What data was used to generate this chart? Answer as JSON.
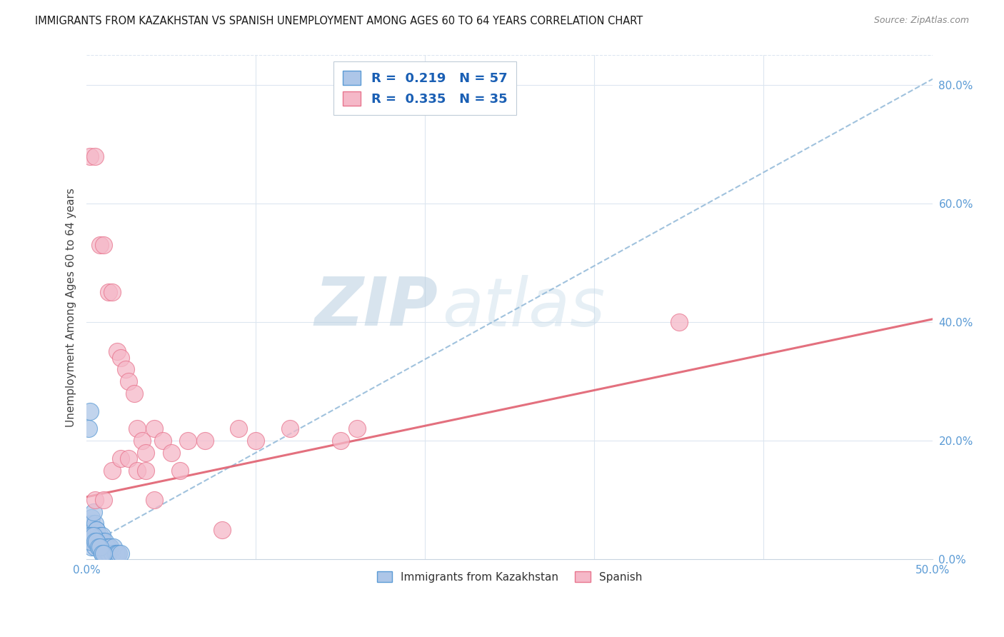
{
  "title": "IMMIGRANTS FROM KAZAKHSTAN VS SPANISH UNEMPLOYMENT AMONG AGES 60 TO 64 YEARS CORRELATION CHART",
  "source": "Source: ZipAtlas.com",
  "ylabel": "Unemployment Among Ages 60 to 64 years",
  "xlim": [
    0.0,
    0.5
  ],
  "ylim": [
    0.0,
    0.85
  ],
  "xticks": [
    0.0,
    0.5
  ],
  "xtick_labels": [
    "0.0%",
    "50.0%"
  ],
  "yticks": [
    0.0,
    0.2,
    0.4,
    0.6,
    0.8
  ],
  "ytick_labels": [
    "0.0%",
    "20.0%",
    "40.0%",
    "60.0%",
    "80.0%"
  ],
  "blue_color": "#adc6e8",
  "blue_edge_color": "#5b9bd5",
  "pink_color": "#f5b8c8",
  "pink_edge_color": "#e8758e",
  "trend_blue_color": "#90b8d8",
  "trend_pink_color": "#e06070",
  "legend_R1": "0.219",
  "legend_N1": "57",
  "legend_R2": "0.335",
  "legend_N2": "35",
  "legend_label1": "Immigrants from Kazakhstan",
  "legend_label2": "Spanish",
  "watermark_zip": "ZIP",
  "watermark_atlas": "atlas",
  "blue_scatter_x": [
    0.001,
    0.002,
    0.001,
    0.003,
    0.002,
    0.004,
    0.003,
    0.005,
    0.004,
    0.006,
    0.005,
    0.007,
    0.006,
    0.008,
    0.007,
    0.009,
    0.008,
    0.01,
    0.009,
    0.011,
    0.01,
    0.012,
    0.011,
    0.013,
    0.012,
    0.014,
    0.013,
    0.001,
    0.002,
    0.003,
    0.004,
    0.005,
    0.006,
    0.007,
    0.008,
    0.009,
    0.01,
    0.011,
    0.012,
    0.013,
    0.014,
    0.015,
    0.016,
    0.017,
    0.018,
    0.019,
    0.02,
    0.001,
    0.002,
    0.003,
    0.004,
    0.005,
    0.006,
    0.007,
    0.008,
    0.009,
    0.01
  ],
  "blue_scatter_y": [
    0.22,
    0.25,
    0.05,
    0.06,
    0.04,
    0.05,
    0.07,
    0.06,
    0.08,
    0.05,
    0.04,
    0.03,
    0.05,
    0.04,
    0.03,
    0.04,
    0.03,
    0.02,
    0.03,
    0.02,
    0.03,
    0.02,
    0.03,
    0.02,
    0.01,
    0.02,
    0.01,
    0.03,
    0.03,
    0.02,
    0.03,
    0.02,
    0.03,
    0.02,
    0.02,
    0.01,
    0.02,
    0.01,
    0.02,
    0.01,
    0.02,
    0.01,
    0.02,
    0.01,
    0.01,
    0.01,
    0.01,
    0.04,
    0.03,
    0.04,
    0.04,
    0.03,
    0.03,
    0.02,
    0.02,
    0.01,
    0.01
  ],
  "pink_scatter_x": [
    0.002,
    0.005,
    0.008,
    0.01,
    0.013,
    0.015,
    0.018,
    0.02,
    0.023,
    0.025,
    0.028,
    0.03,
    0.033,
    0.035,
    0.04,
    0.045,
    0.05,
    0.055,
    0.06,
    0.07,
    0.08,
    0.09,
    0.1,
    0.12,
    0.15,
    0.16,
    0.005,
    0.01,
    0.015,
    0.02,
    0.025,
    0.03,
    0.035,
    0.04,
    0.35
  ],
  "pink_scatter_y": [
    0.68,
    0.68,
    0.53,
    0.53,
    0.45,
    0.45,
    0.35,
    0.34,
    0.32,
    0.3,
    0.28,
    0.22,
    0.2,
    0.18,
    0.22,
    0.2,
    0.18,
    0.15,
    0.2,
    0.2,
    0.05,
    0.22,
    0.2,
    0.22,
    0.2,
    0.22,
    0.1,
    0.1,
    0.15,
    0.17,
    0.17,
    0.15,
    0.15,
    0.1,
    0.4
  ],
  "blue_trend_x": [
    0.0,
    0.5
  ],
  "blue_trend_y": [
    0.022,
    0.81
  ],
  "pink_trend_x": [
    0.0,
    0.5
  ],
  "pink_trend_y": [
    0.105,
    0.405
  ],
  "grid_color": "#dce6f0",
  "grid_yticks": [
    0.2,
    0.4,
    0.6,
    0.8
  ],
  "bg_color": "#ffffff"
}
